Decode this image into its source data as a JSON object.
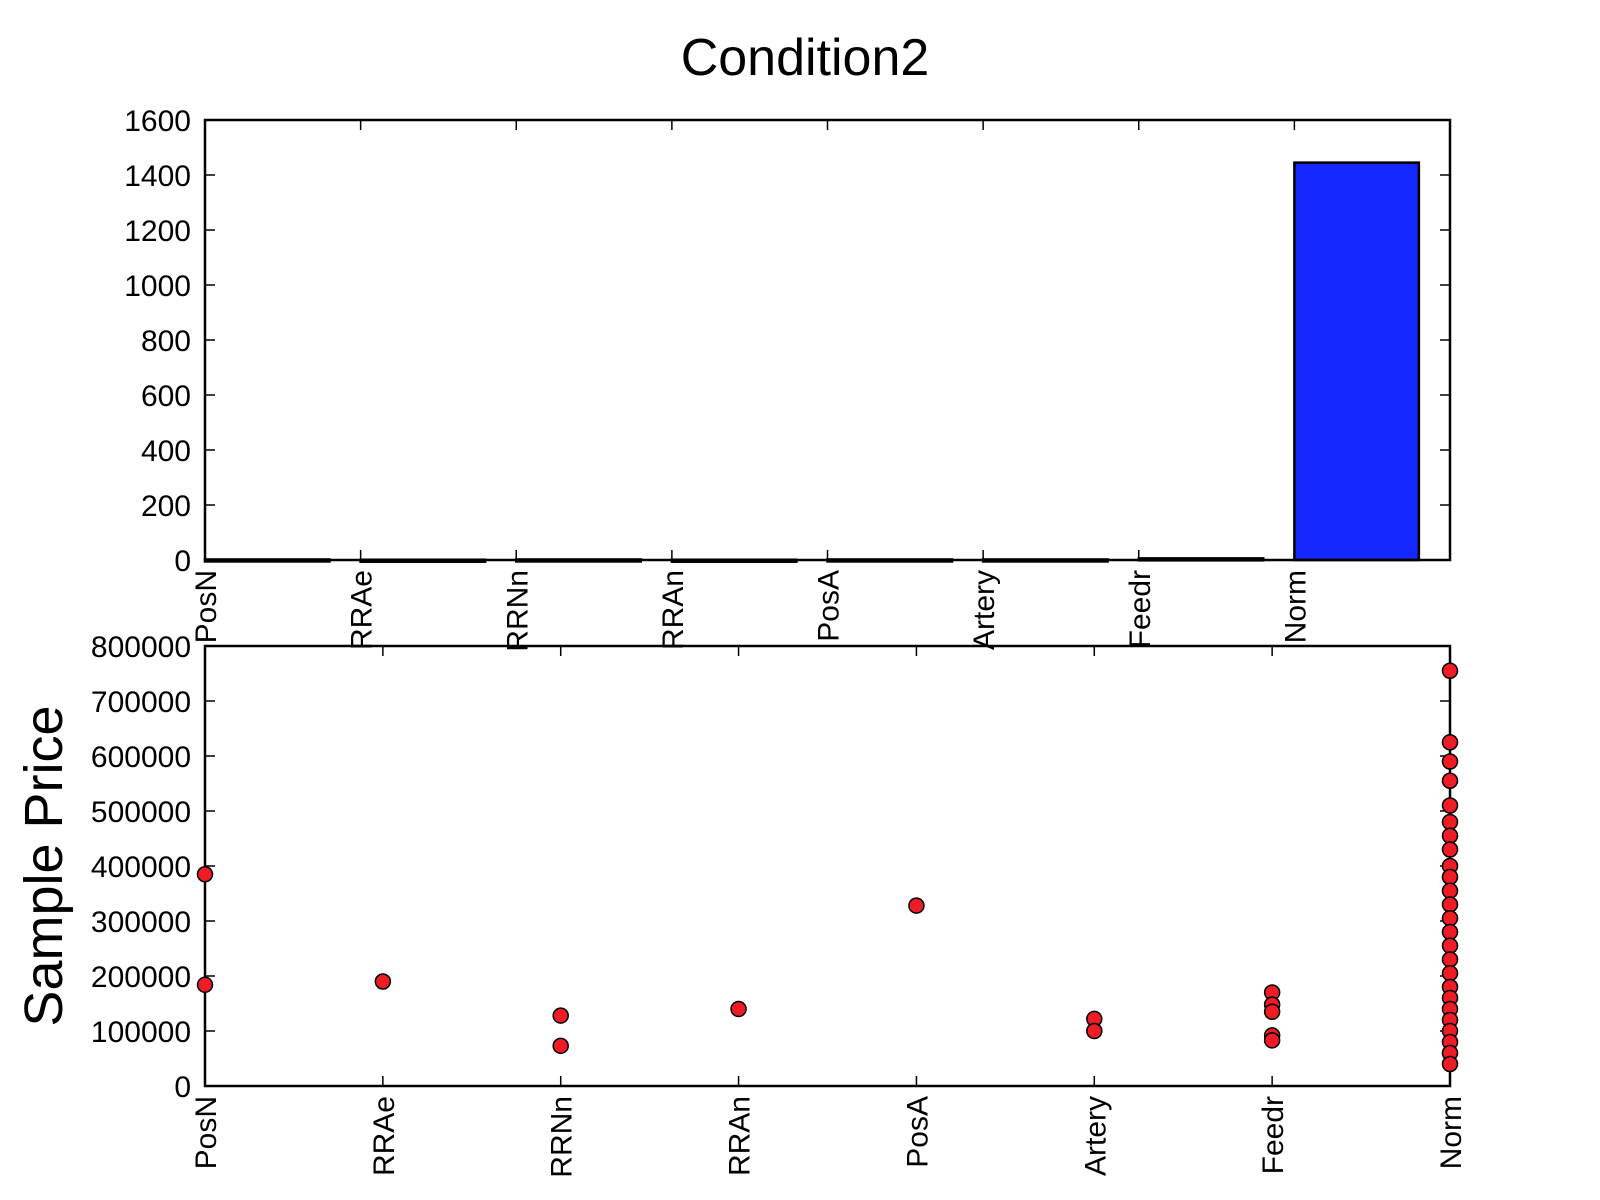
{
  "chart_data": [
    {
      "type": "bar",
      "title": "Condition2",
      "xlabel": "",
      "ylabel": "",
      "categories": [
        "PosN",
        "RRAe",
        "RRNn",
        "RRAn",
        "PosA",
        "Artery",
        "Feedr",
        "Norm"
      ],
      "values": [
        2,
        1,
        2,
        1,
        2,
        2,
        6,
        1445
      ],
      "ylim": [
        0,
        1600
      ],
      "yticks": [
        "0",
        "200",
        "400",
        "600",
        "800",
        "1000",
        "1200",
        "1400",
        "1600"
      ],
      "grid": false,
      "colors": {
        "bar": "#1428ff",
        "bar_edge": "#000000"
      }
    },
    {
      "type": "scatter",
      "title": "",
      "xlabel": "",
      "ylabel": "Sample Price",
      "categories": [
        "PosN",
        "RRAe",
        "RRNn",
        "RRAn",
        "PosA",
        "Artery",
        "Feedr",
        "Norm"
      ],
      "points": [
        {
          "x": "PosN",
          "y": 385000
        },
        {
          "x": "PosN",
          "y": 184000
        },
        {
          "x": "RRAe",
          "y": 190000
        },
        {
          "x": "RRNn",
          "y": 128000
        },
        {
          "x": "RRNn",
          "y": 73000
        },
        {
          "x": "RRAn",
          "y": 140000
        },
        {
          "x": "PosA",
          "y": 328000
        },
        {
          "x": "Artery",
          "y": 122000
        },
        {
          "x": "Artery",
          "y": 100000
        },
        {
          "x": "Feedr",
          "y": 170000
        },
        {
          "x": "Feedr",
          "y": 148000
        },
        {
          "x": "Feedr",
          "y": 135000
        },
        {
          "x": "Feedr",
          "y": 92000
        },
        {
          "x": "Feedr",
          "y": 83000
        },
        {
          "x": "Norm",
          "y": 755000
        },
        {
          "x": "Norm",
          "y": 625000
        },
        {
          "x": "Norm",
          "y": 590000
        },
        {
          "x": "Norm",
          "y": 555000
        },
        {
          "x": "Norm",
          "y": 510000
        },
        {
          "x": "Norm",
          "y": 480000
        },
        {
          "x": "Norm",
          "y": 455000
        },
        {
          "x": "Norm",
          "y": 430000
        },
        {
          "x": "Norm",
          "y": 400000
        },
        {
          "x": "Norm",
          "y": 380000
        },
        {
          "x": "Norm",
          "y": 355000
        },
        {
          "x": "Norm",
          "y": 330000
        },
        {
          "x": "Norm",
          "y": 305000
        },
        {
          "x": "Norm",
          "y": 280000
        },
        {
          "x": "Norm",
          "y": 255000
        },
        {
          "x": "Norm",
          "y": 230000
        },
        {
          "x": "Norm",
          "y": 205000
        },
        {
          "x": "Norm",
          "y": 180000
        },
        {
          "x": "Norm",
          "y": 160000
        },
        {
          "x": "Norm",
          "y": 140000
        },
        {
          "x": "Norm",
          "y": 120000
        },
        {
          "x": "Norm",
          "y": 100000
        },
        {
          "x": "Norm",
          "y": 80000
        },
        {
          "x": "Norm",
          "y": 60000
        },
        {
          "x": "Norm",
          "y": 40000
        }
      ],
      "ylim": [
        0,
        800000
      ],
      "yticks": [
        "0",
        "100000",
        "200000",
        "300000",
        "400000",
        "500000",
        "600000",
        "700000",
        "800000"
      ],
      "grid": false,
      "colors": {
        "marker": "#ee1c25",
        "marker_edge": "#000000"
      }
    }
  ]
}
